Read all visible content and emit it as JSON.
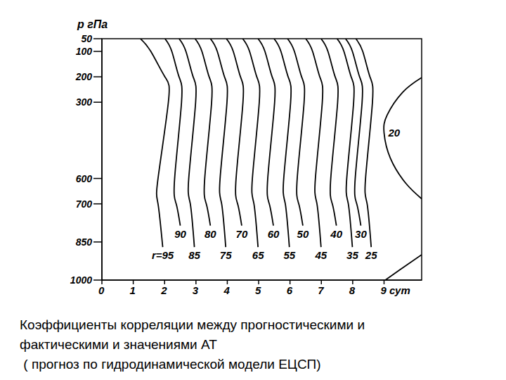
{
  "chart_data": {
    "type": "contour",
    "y_label": "p гПа",
    "caption": [
      "Коэффициенты корреляции между прогностическими и",
      "фактическими и значениями АТ",
      " ( прогноз по гидродинамической модели ЕЦСП)"
    ],
    "color": "#000000",
    "xlim": [
      0,
      10.2
    ],
    "xticks": [
      0,
      1,
      2,
      3,
      4,
      5,
      6,
      7,
      8,
      {
        "value": 9,
        "label": "9 сут"
      }
    ],
    "ylim": [
      50,
      1000
    ],
    "yticks": [
      50,
      100,
      200,
      300,
      600,
      700,
      850,
      1000
    ],
    "series": [
      {
        "label": "r=95",
        "p": [
          50,
          100,
          200,
          300,
          600,
          700,
          870
        ],
        "x": [
          1.23,
          1.56,
          2.01,
          2.12,
          1.79,
          1.79,
          1.94
        ]
      },
      {
        "label": "90",
        "p": [
          50,
          100,
          200,
          300,
          600,
          700,
          786
        ],
        "x": [
          2.01,
          2.23,
          2.46,
          2.54,
          2.32,
          2.37,
          2.5
        ]
      },
      {
        "label": "85",
        "p": [
          50,
          100,
          200,
          300,
          600,
          700,
          870
        ],
        "x": [
          2.46,
          2.68,
          2.91,
          2.99,
          2.77,
          2.82,
          2.95
        ]
      },
      {
        "label": "80",
        "p": [
          50,
          100,
          200,
          300,
          600,
          700,
          786
        ],
        "x": [
          2.97,
          3.19,
          3.42,
          3.5,
          3.28,
          3.33,
          3.46
        ]
      },
      {
        "label": "75",
        "p": [
          50,
          100,
          200,
          300,
          600,
          700,
          870
        ],
        "x": [
          3.46,
          3.68,
          3.91,
          3.99,
          3.77,
          3.82,
          3.95
        ]
      },
      {
        "label": "70",
        "p": [
          50,
          100,
          200,
          300,
          600,
          700,
          786
        ],
        "x": [
          3.97,
          4.19,
          4.42,
          4.5,
          4.28,
          4.33,
          4.46
        ]
      },
      {
        "label": "65",
        "p": [
          50,
          100,
          200,
          300,
          600,
          700,
          870
        ],
        "x": [
          4.49,
          4.71,
          4.94,
          5.02,
          4.8,
          4.85,
          4.98
        ]
      },
      {
        "label": "60",
        "p": [
          50,
          100,
          200,
          300,
          600,
          700,
          786
        ],
        "x": [
          4.98,
          5.2,
          5.43,
          5.51,
          5.29,
          5.34,
          5.47
        ]
      },
      {
        "label": "55",
        "p": [
          50,
          100,
          200,
          300,
          600,
          700,
          870
        ],
        "x": [
          5.49,
          5.71,
          5.94,
          6.02,
          5.8,
          5.85,
          5.98
        ]
      },
      {
        "label": "50",
        "p": [
          50,
          100,
          200,
          300,
          600,
          700,
          786
        ],
        "x": [
          5.92,
          6.14,
          6.37,
          6.45,
          6.23,
          6.28,
          6.41
        ]
      },
      {
        "label": "45",
        "p": [
          50,
          100,
          200,
          300,
          600,
          700,
          870
        ],
        "x": [
          6.5,
          6.72,
          6.95,
          7.03,
          6.81,
          6.86,
          6.99
        ]
      },
      {
        "label": "40",
        "p": [
          50,
          100,
          200,
          300,
          600,
          700,
          786
        ],
        "x": [
          6.99,
          7.21,
          7.44,
          7.52,
          7.3,
          7.35,
          7.48
        ]
      },
      {
        "label": "35",
        "p": [
          50,
          100,
          200,
          300,
          600,
          700,
          870
        ],
        "x": [
          7.5,
          7.72,
          7.95,
          8.03,
          7.81,
          7.86,
          7.99
        ]
      },
      {
        "label": "30",
        "p": [
          50,
          100,
          200,
          300,
          600,
          700,
          786
        ],
        "x": [
          7.77,
          7.99,
          8.22,
          8.3,
          8.08,
          8.13,
          8.26
        ]
      },
      {
        "label": "25",
        "p": [
          50,
          100,
          200,
          300,
          600,
          700,
          870
        ],
        "x": [
          8.1,
          8.32,
          8.55,
          8.63,
          8.41,
          8.46,
          8.59
        ]
      },
      {
        "label": "20",
        "p": [
          203,
          260,
          350,
          420,
          520,
          620,
          680
        ],
        "x": [
          10.2,
          9.6,
          9.1,
          9.0,
          9.2,
          9.7,
          10.2
        ]
      },
      {
        "label": null,
        "p": [
          1000,
          960,
          900
        ],
        "x": [
          9.04,
          9.5,
          10.2
        ]
      }
    ]
  }
}
